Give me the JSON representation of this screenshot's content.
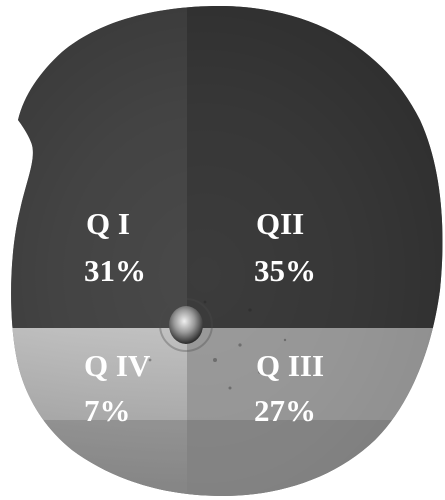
{
  "quadrants": [
    {
      "label": "Q I",
      "percent": "31%"
    },
    {
      "label": "QII",
      "percent": "35%"
    },
    {
      "label": "Q III",
      "percent": "27%"
    },
    {
      "label": "Q IV",
      "percent": "7%"
    }
  ],
  "colors": {
    "background": "#ffffff",
    "text": "#ffffff",
    "upper_overlay": "#2f2f2f",
    "lower_overlay": "#9a9a9a"
  }
}
